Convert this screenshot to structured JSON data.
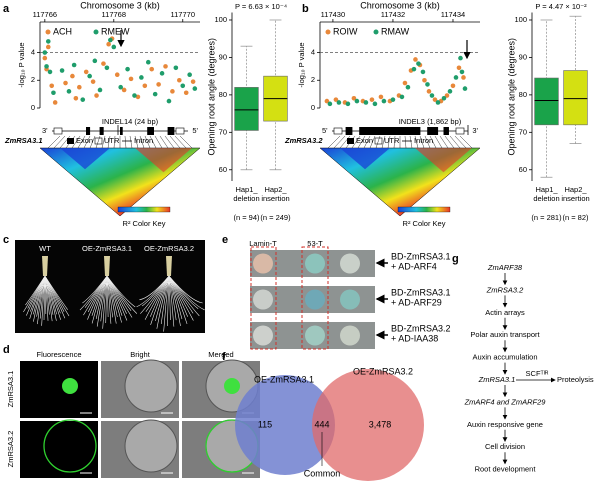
{
  "panel_labels": [
    "a",
    "b",
    "c",
    "d",
    "e",
    "f",
    "g"
  ],
  "chart_data": [
    {
      "type": "scatter",
      "title": "Chromosome 3 (kb)",
      "y_label": "-log₁₀ P value",
      "xlim": [
        117765.86,
        117770.5
      ],
      "xticks": [
        117766,
        117768,
        117770
      ],
      "ylim": [
        0,
        6.2
      ],
      "yticks": [
        0,
        2,
        4
      ],
      "threshold": 4,
      "legend": "top-left",
      "series": [
        {
          "name": "ACH",
          "color": "#e8883a",
          "x": [
            117766.0,
            117766.05,
            117766.1,
            117766.2,
            117766.3,
            117766.6,
            117766.8,
            117766.9,
            117767.0,
            117767.2,
            117767.4,
            117767.5,
            117767.7,
            117767.85,
            117767.95,
            117768.1,
            117768.3,
            117768.5,
            117768.7,
            117768.9,
            117769.1,
            117769.3,
            117769.5,
            117769.7,
            117769.9,
            117770.1,
            117770.3
          ],
          "values": [
            3.6,
            2.8,
            4.4,
            1.6,
            0.4,
            1.8,
            2.3,
            0.7,
            1.5,
            2.6,
            1.9,
            0.9,
            3.2,
            4.6,
            5.0,
            2.4,
            1.3,
            2.1,
            0.8,
            1.6,
            2.8,
            1.7,
            3.0,
            1.2,
            2.0,
            1.1,
            1.9
          ]
        },
        {
          "name": "RMEW",
          "color": "#1f9d6b",
          "x": [
            117766.0,
            117766.05,
            117766.1,
            117766.15,
            117766.25,
            117766.5,
            117766.7,
            117766.85,
            117767.1,
            117767.3,
            117767.45,
            117767.6,
            117767.8,
            117767.9,
            117768.0,
            117768.2,
            117768.4,
            117768.6,
            117768.8,
            117769.0,
            117769.2,
            117769.4,
            117769.6,
            117769.8,
            117770.0,
            117770.2,
            117770.35
          ],
          "values": [
            4.0,
            3.0,
            4.8,
            2.6,
            1.1,
            2.7,
            1.2,
            3.1,
            0.6,
            2.3,
            3.4,
            1.3,
            2.9,
            4.9,
            4.4,
            1.5,
            2.8,
            0.9,
            2.2,
            3.3,
            1.0,
            2.5,
            0.5,
            2.9,
            1.6,
            2.4,
            1.4
          ]
        }
      ]
    },
    {
      "type": "box",
      "title": "P = 6.63 × 10⁻⁴",
      "y_label": "Opening root angle (degrees)",
      "ylim": [
        57,
        102
      ],
      "yticks": [
        60,
        70,
        80,
        90,
        100
      ],
      "categories": [
        [
          "Hap1_",
          "deletion"
        ],
        [
          "Hap2_",
          "insertion"
        ]
      ],
      "n_labels": [
        "(n = 94)",
        "(n = 249)"
      ],
      "boxes": [
        {
          "color": "#1aa34a",
          "min": 60,
          "q1": 70.5,
          "median": 76,
          "q3": 82,
          "max": 93
        },
        {
          "color": "#d4e012",
          "min": 60,
          "q1": 73,
          "median": 79,
          "q3": 85,
          "max": 100
        }
      ]
    },
    {
      "type": "scatter",
      "title": "Chromosome 3 (kb)",
      "y_label": "-log₁₀ P value",
      "xlim": [
        117429.57,
        117434.9
      ],
      "xticks": [
        117430,
        117432,
        117434
      ],
      "ylim": [
        0,
        6.2
      ],
      "yticks": [
        0,
        2,
        4
      ],
      "threshold": 4,
      "legend": "top-left",
      "series": [
        {
          "name": "ROIW",
          "color": "#e8883a",
          "x": [
            117429.8,
            117430.1,
            117430.4,
            117430.7,
            117431.0,
            117431.3,
            117431.6,
            117431.9,
            117432.2,
            117432.4,
            117432.6,
            117432.75,
            117432.9,
            117433.05,
            117433.2,
            117433.4,
            117433.6,
            117433.8,
            117434.0,
            117434.2,
            117434.35
          ],
          "values": [
            0.5,
            0.6,
            0.4,
            0.7,
            0.5,
            0.6,
            0.8,
            0.5,
            0.9,
            1.8,
            2.7,
            3.5,
            3.1,
            2.0,
            1.2,
            0.6,
            0.5,
            0.9,
            1.6,
            2.9,
            2.2
          ]
        },
        {
          "name": "RMAW",
          "color": "#1f9d6b",
          "x": [
            117429.9,
            117430.2,
            117430.5,
            117430.8,
            117431.1,
            117431.4,
            117431.7,
            117432.0,
            117432.3,
            117432.5,
            117432.7,
            117432.85,
            117433.0,
            117433.15,
            117433.3,
            117433.5,
            117433.7,
            117433.9,
            117434.1,
            117434.25,
            117434.3,
            117434.4
          ],
          "values": [
            0.3,
            0.4,
            0.3,
            0.5,
            0.4,
            0.3,
            0.5,
            0.6,
            0.8,
            1.5,
            2.8,
            3.2,
            2.6,
            1.7,
            0.9,
            0.4,
            0.7,
            1.2,
            2.2,
            3.6,
            2.6,
            1.4
          ]
        }
      ]
    },
    {
      "type": "box",
      "title": "P = 4.47 × 10⁻²",
      "y_label": "Opening root angle (degrees)",
      "ylim": [
        57,
        102
      ],
      "yticks": [
        60,
        70,
        80,
        90,
        100
      ],
      "categories": [
        [
          "Hap1_",
          "deletion"
        ],
        [
          "Hap2_",
          "insertion"
        ]
      ],
      "n_labels": [
        "(n = 281)",
        "(n = 82)"
      ],
      "boxes": [
        {
          "color": "#1aa34a",
          "min": 58,
          "q1": 72,
          "median": 78.5,
          "q3": 84.5,
          "max": 100
        },
        {
          "color": "#d4e012",
          "min": 67,
          "q1": 72,
          "median": 79,
          "q3": 86.5,
          "max": 101
        }
      ]
    }
  ],
  "genes": [
    {
      "name": "ZmRSA3.1",
      "left_end": "3'",
      "right_end": "5'",
      "indel": "INDEL14 (24 bp)",
      "legend": [
        "Exon",
        "UTR",
        "Intron"
      ],
      "color_key": "R² Color Key"
    },
    {
      "name": "ZmRSA3.2",
      "left_end": "5'",
      "right_end": "3'",
      "indel": "INDEL3 (1,862 bp)",
      "legend": [
        "Exon",
        "UTR",
        "Intron"
      ],
      "color_key": "R² Color Key"
    }
  ],
  "photos": [
    "WT",
    "OE-ZmRSA3.1",
    "OE-ZmRSA3.2"
  ],
  "localization": {
    "columns": [
      "Fluorescence",
      "Bright",
      "Merged"
    ],
    "rows": [
      "ZmRSA3.1",
      "ZmRSA3.2"
    ]
  },
  "y2h": {
    "columns": [
      "Lamin-T",
      "53-T"
    ],
    "rows": [
      [
        "BD-ZmRSA3.1",
        "+ AD-ARF4"
      ],
      [
        "BD-ZmRSA3.1",
        "+ AD-ARF29"
      ],
      [
        "BD-ZmRSA3.2",
        "+ AD-IAA38"
      ]
    ]
  },
  "venn": {
    "sets": [
      "OE-ZmRSA3.1",
      "OE-ZmRSA3.2"
    ],
    "counts": [
      "115",
      "444",
      "3,478"
    ],
    "common": "Common"
  },
  "pathway": {
    "nodes": [
      {
        "text": "ZmARF38",
        "italic": true
      },
      {
        "text": "ZmRSA3.2",
        "italic": true
      },
      {
        "text": "Actin arrays",
        "italic": false
      },
      {
        "text": "Polar auxin transport",
        "italic": false
      },
      {
        "text": "Auxin accumulation",
        "italic": false
      },
      {
        "text": "ZmRSA3.1",
        "italic": true,
        "branch_label": "SCFᵀᴵᴿ",
        "branch_target": "Proteolysis"
      },
      {
        "text": "ZmARF4 and ZmARF29",
        "italic": true
      },
      {
        "text": "Auxin responsive gene",
        "italic": false
      },
      {
        "text": "Cell division",
        "italic": false
      },
      {
        "text": "Root development",
        "italic": false
      }
    ]
  }
}
